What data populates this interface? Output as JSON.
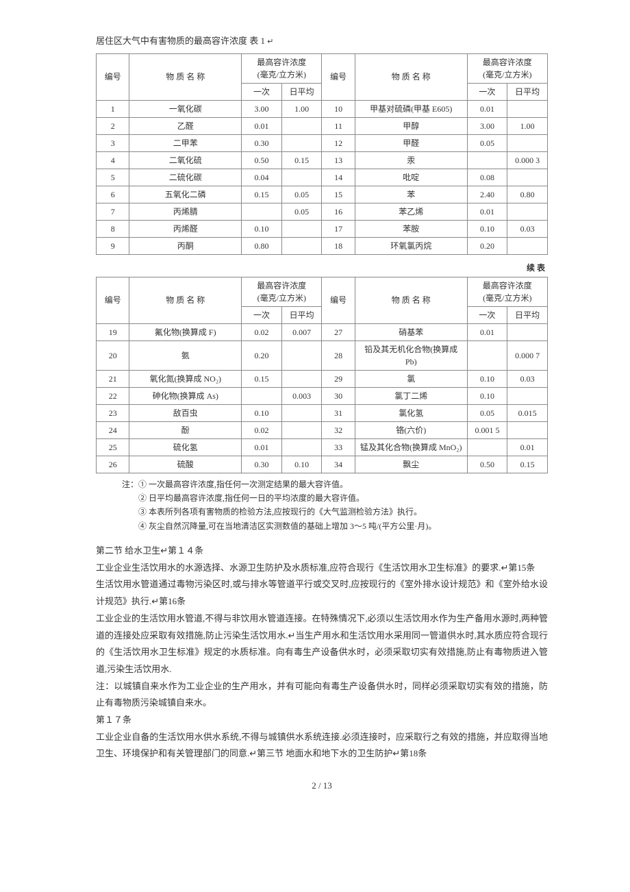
{
  "caption": "居住区大气中有害物质的最高容许浓度 表 1",
  "marker": "↵",
  "headers": {
    "num": "编号",
    "name": "物 质 名 称",
    "conc_group": "最高容许浓度\n(毫克/立方米)",
    "once": "一次",
    "avg": "日平均"
  },
  "table1_left": [
    {
      "n": "1",
      "name": "一氧化碳",
      "once": "3.00",
      "avg": "1.00"
    },
    {
      "n": "2",
      "name": "乙醛",
      "once": "0.01",
      "avg": ""
    },
    {
      "n": "3",
      "name": "二甲苯",
      "once": "0.30",
      "avg": ""
    },
    {
      "n": "4",
      "name": "二氧化硫",
      "once": "0.50",
      "avg": "0.15"
    },
    {
      "n": "5",
      "name": "二硫化碳",
      "once": "0.04",
      "avg": ""
    },
    {
      "n": "6",
      "name": "五氧化二磷",
      "once": "0.15",
      "avg": "0.05"
    },
    {
      "n": "7",
      "name": "丙烯腈",
      "once": "",
      "avg": "0.05"
    },
    {
      "n": "8",
      "name": "丙烯醛",
      "once": "0.10",
      "avg": ""
    },
    {
      "n": "9",
      "name": "丙酮",
      "once": "0.80",
      "avg": ""
    }
  ],
  "table1_right": [
    {
      "n": "10",
      "name": "甲基对硫磷(甲基 E605)",
      "once": "0.01",
      "avg": ""
    },
    {
      "n": "11",
      "name": "甲醇",
      "once": "3.00",
      "avg": "1.00"
    },
    {
      "n": "12",
      "name": "甲醛",
      "once": "0.05",
      "avg": ""
    },
    {
      "n": "13",
      "name": "汞",
      "once": "",
      "avg": "0.000 3"
    },
    {
      "n": "14",
      "name": "吡啶",
      "once": "0.08",
      "avg": ""
    },
    {
      "n": "15",
      "name": "苯",
      "once": "2.40",
      "avg": "0.80"
    },
    {
      "n": "16",
      "name": "苯乙烯",
      "once": "0.01",
      "avg": ""
    },
    {
      "n": "17",
      "name": "苯胺",
      "once": "0.10",
      "avg": "0.03"
    },
    {
      "n": "18",
      "name": "环氧氯丙烷",
      "once": "0.20",
      "avg": ""
    }
  ],
  "cont_label": "续 表",
  "table2_left": [
    {
      "n": "19",
      "name": "氟化物(换算成 F)",
      "once": "0.02",
      "avg": "0.007"
    },
    {
      "n": "20",
      "name": "氨",
      "once": "0.20",
      "avg": ""
    },
    {
      "n": "21",
      "name": "氧化氮(换算成 NO₂)",
      "once": "0.15",
      "avg": ""
    },
    {
      "n": "22",
      "name": "砷化物(换算成 As)",
      "once": "",
      "avg": "0.003"
    },
    {
      "n": "23",
      "name": "敌百虫",
      "once": "0.10",
      "avg": ""
    },
    {
      "n": "24",
      "name": "酚",
      "once": "0.02",
      "avg": ""
    },
    {
      "n": "25",
      "name": "硫化氢",
      "once": "0.01",
      "avg": ""
    },
    {
      "n": "26",
      "name": "硫酸",
      "once": "0.30",
      "avg": "0.10"
    }
  ],
  "table2_right": [
    {
      "n": "27",
      "name": "硝基苯",
      "once": "0.01",
      "avg": ""
    },
    {
      "n": "28",
      "name": "铅及其无机化合物(换算成 Pb)",
      "once": "",
      "avg": "0.000 7"
    },
    {
      "n": "29",
      "name": "氯",
      "once": "0.10",
      "avg": "0.03"
    },
    {
      "n": "30",
      "name": "氯丁二烯",
      "once": "0.10",
      "avg": ""
    },
    {
      "n": "31",
      "name": "氯化氢",
      "once": "0.05",
      "avg": "0.015"
    },
    {
      "n": "32",
      "name": "铬(六价)",
      "once": "0.001 5",
      "avg": ""
    },
    {
      "n": "33",
      "name": "锰及其化合物(换算成 MnO₂)",
      "once": "",
      "avg": "0.01"
    },
    {
      "n": "34",
      "name": "飘尘",
      "once": "0.50",
      "avg": "0.15"
    }
  ],
  "notes_label": "注：",
  "notes": [
    "① 一次最高容许浓度,指任何一次测定结果的最大容许值。",
    "② 日平均最高容许浓度,指任何一日的平均浓度的最大容许值。",
    "③ 本表所列各项有害物质的检验方法,应按现行的《大气监测检验方法》执行。",
    "④ 灰尘自然沉降量,可在当地清洁区实测数值的基础上增加 3～5 吨/(平方公里·月)。"
  ],
  "body": {
    "p1": "第二节 给水卫生↵第１４条",
    "p2": "工业企业生活饮用水的水源选择、水源卫生防护及水质标准,应符合现行《生活饮用水卫生标准》的要求.↵第15条",
    "p3": "生活饮用水管道通过毒物污染区时,或与排水等管道平行或交叉时,应按现行的《室外排水设计规范》和《室外给水设计规范》执行.↵第16条",
    "p4": "工业企业的生活饮用水管道,不得与非饮用水管道连接。在特殊情况下,必须以生活饮用水作为生产备用水源时,两种管道的连接处应采取有效措施,防止污染生活饮用水.↵当生产用水和生活饮用水采用同一管道供水时,其水质应符合现行的《生活饮用水卫生标准》规定的水质标准。向有毒生产设备供水时，必须采取切实有效措施,防止有毒物质进入管道,污染生活饮用水.",
    "p5": "注：以城镇自来水作为工业企业的生产用水，并有可能向有毒生产设备供水时，同样必须采取切实有效的措施，防止有毒物质污染城镇自来水。",
    "p6": "第１７条",
    "p7": "工业企业自备的生活饮用水供水系统,不得与城镇供水系统连接.必须连接时，应采取行之有效的措施，并应取得当地卫生、环境保护和有关管理部门的同意.↵第三节 地面水和地下水的卫生防护↵第18条"
  },
  "pagefoot": "2 / 13"
}
